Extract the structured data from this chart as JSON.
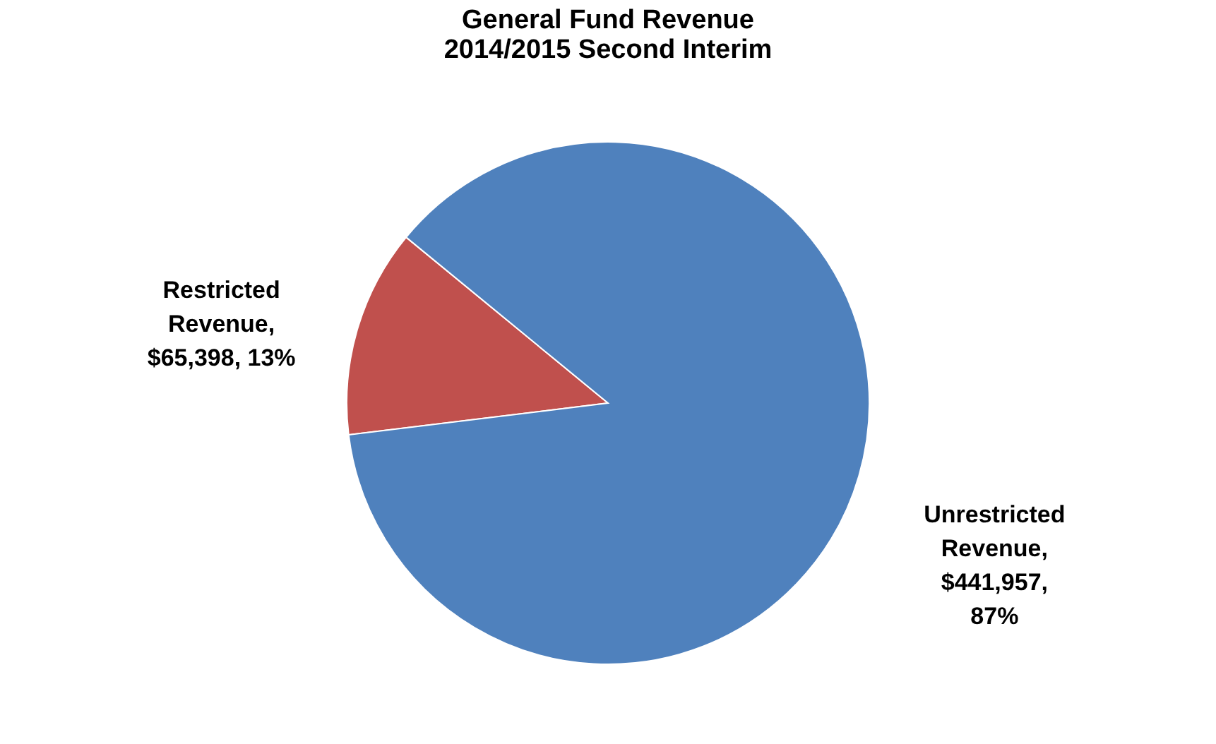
{
  "chart_data": {
    "type": "pie",
    "title": [
      "General Fund Revenue",
      "2014/2015 Second Interim"
    ],
    "categories": [
      "Restricted Revenue",
      "Unrestricted Revenue"
    ],
    "values": [
      65398,
      441957
    ],
    "colors": [
      "#c0504d",
      "#4f81bd"
    ],
    "value_labels": [
      ", $65,398, 13%",
      ", $441,957, 87%"
    ],
    "legend": false
  }
}
